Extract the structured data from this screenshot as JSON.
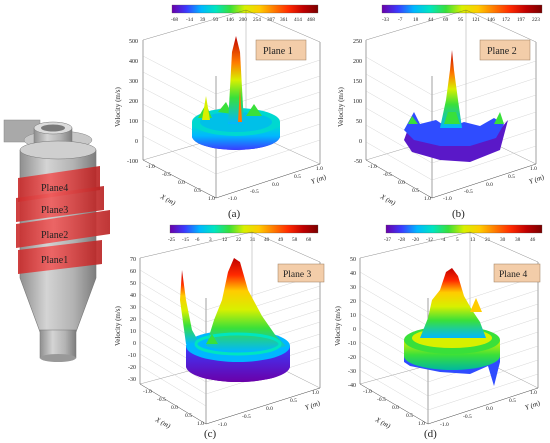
{
  "cyclone": {
    "planes": [
      "Plane4",
      "Plane3",
      "Plane2",
      "Plane1"
    ],
    "colors": {
      "body": "#b9b9b9",
      "plane": "#e23b3b"
    }
  },
  "panels": [
    {
      "caption": "(a)",
      "tag": "Plane 1",
      "z_label": "Velocity (m/s)",
      "x_label": "X (m)",
      "y_label": "Y (m)",
      "colorbar_ticks": [
        "-68",
        "-14",
        "39",
        "93",
        "146",
        "200",
        "254",
        "307",
        "361",
        "414",
        "468"
      ],
      "z_ticks": [
        "500",
        "400",
        "300",
        "200",
        "100",
        "0",
        "-100"
      ],
      "x_ticks": [
        "-1.0",
        "-0.5",
        "0.0",
        "0.5",
        "1.0"
      ],
      "y_ticks": [
        "-1.0",
        "-0.5",
        "0.0",
        "0.5",
        "1.0"
      ]
    },
    {
      "caption": "(b)",
      "tag": "Plane 2",
      "z_label": "Velocity (m/s)",
      "x_label": "X (m)",
      "y_label": "Y (m)",
      "colorbar_ticks": [
        "-33",
        "-7",
        "18",
        "44",
        "69",
        "95",
        "121",
        "146",
        "172",
        "197",
        "223"
      ],
      "z_ticks": [
        "250",
        "200",
        "150",
        "100",
        "50",
        "0",
        "-50"
      ],
      "x_ticks": [
        "-1.0",
        "-0.5",
        "0.0",
        "0.5",
        "1.0"
      ],
      "y_ticks": [
        "-1.0",
        "-0.5",
        "0.0",
        "0.5",
        "1.0"
      ]
    },
    {
      "caption": "(c)",
      "tag": "Plane 3",
      "z_label": "Velocity (m/s)",
      "x_label": "X (m)",
      "y_label": "Y (m)",
      "colorbar_ticks": [
        "-25",
        "-15",
        "-6",
        "3",
        "12",
        "22",
        "31",
        "40",
        "49",
        "58",
        "68"
      ],
      "z_ticks": [
        "70",
        "60",
        "50",
        "40",
        "30",
        "20",
        "10",
        "0",
        "-10",
        "-20",
        "-30"
      ],
      "x_ticks": [
        "-1.0",
        "-0.5",
        "0.0",
        "0.5",
        "1.0"
      ],
      "y_ticks": [
        "-1.0",
        "-0.5",
        "0.0",
        "0.5",
        "1.0"
      ]
    },
    {
      "caption": "(d)",
      "tag": "Plane 4",
      "z_label": "Velocity (m/s)",
      "x_label": "X (m)",
      "y_label": "Y (m)",
      "colorbar_ticks": [
        "-37",
        "-28",
        "-20",
        "-12",
        "-4",
        "5",
        "13",
        "21",
        "30",
        "38",
        "46"
      ],
      "z_ticks": [
        "50",
        "40",
        "30",
        "20",
        "10",
        "0",
        "-10",
        "-20",
        "-30",
        "-40"
      ],
      "x_ticks": [
        "-1.0",
        "-0.5",
        "0.0",
        "0.5",
        "1.0"
      ],
      "y_ticks": [
        "-1.0",
        "-0.5",
        "0.0",
        "0.5",
        "1.0"
      ]
    }
  ],
  "colors": {
    "tag_fill": "#f3cda9",
    "colormap": [
      "#6a00a8",
      "#3b3bff",
      "#00b7ff",
      "#00e5c0",
      "#39e03a",
      "#d8f000",
      "#ffcc00",
      "#ff7a00",
      "#ff2a00",
      "#c00000",
      "#7a0000"
    ]
  }
}
